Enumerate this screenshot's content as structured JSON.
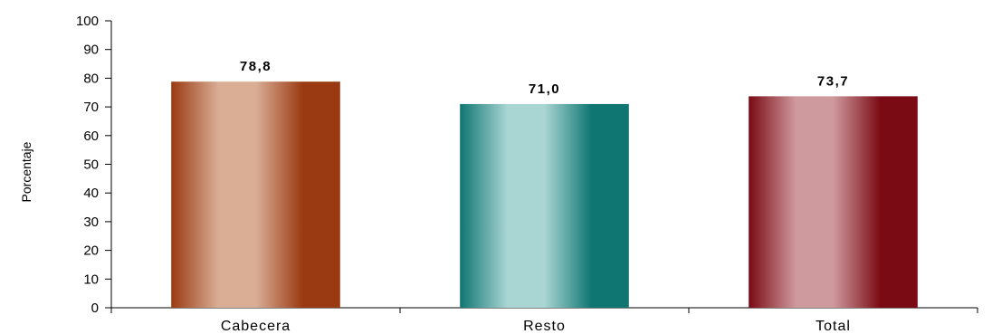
{
  "chart_data": {
    "type": "bar",
    "title": "",
    "xlabel": "",
    "ylabel": "Porcentaje",
    "ylim": [
      0,
      100
    ],
    "yticks": [
      0,
      10,
      20,
      30,
      40,
      50,
      60,
      70,
      80,
      90,
      100
    ],
    "grid": false,
    "legend": "none",
    "categories": [
      "Cabecera",
      "Resto",
      "Total"
    ],
    "values": [
      78.8,
      71.0,
      73.7
    ],
    "data_labels": [
      "78,8",
      "71,0",
      "73,7"
    ],
    "bar_colors": [
      {
        "dark": "#9a3a12",
        "light": "#d9ae95"
      },
      {
        "dark": "#0f7672",
        "light": "#a9d5d3"
      },
      {
        "dark": "#7a0a14",
        "light": "#cf9a9e"
      }
    ]
  }
}
